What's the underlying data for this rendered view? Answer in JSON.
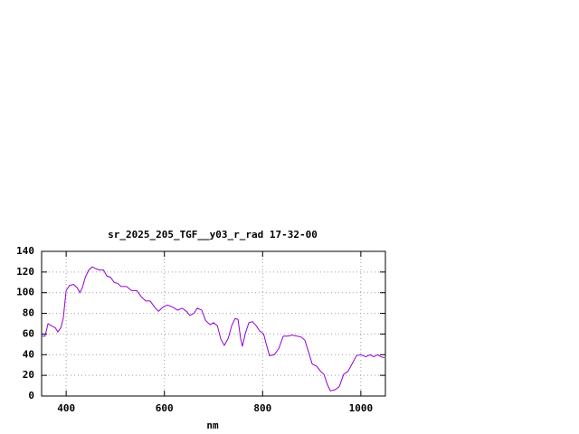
{
  "chart_data": {
    "type": "line",
    "title": "sr_2025_205_TGF__y03_r_rad 17-32-00",
    "x_label": "nm",
    "xlim": [
      350,
      1050
    ],
    "xticks": [
      400,
      600,
      800,
      1000
    ],
    "ylim": [
      0,
      140
    ],
    "yticks": [
      0,
      20,
      40,
      60,
      80,
      100,
      120,
      140
    ],
    "grid": true,
    "series": [
      {
        "color": "#9400d3",
        "x": [
          350,
          357,
          363,
          370,
          378,
          383,
          389,
          394,
          400,
          407,
          415,
          422,
          428,
          433,
          439,
          446,
          453,
          461,
          468,
          476,
          483,
          490,
          498,
          505,
          512,
          523,
          533,
          544,
          553,
          562,
          571,
          580,
          588,
          597,
          606,
          617,
          627,
          636,
          645,
          652,
          660,
          667,
          676,
          684,
          693,
          700,
          708,
          715,
          722,
          730,
          737,
          744,
          750,
          755,
          759,
          765,
          772,
          779,
          787,
          794,
          802,
          807,
          814,
          824,
          833,
          842,
          851,
          860,
          870,
          879,
          886,
          894,
          901,
          910,
          918,
          925,
          932,
          938,
          947,
          956,
          965,
          974,
          982,
          991,
          1000,
          1010,
          1019,
          1026,
          1034,
          1041,
          1048
        ],
        "values": [
          58,
          58,
          70,
          68,
          66,
          62,
          66,
          75,
          102,
          107,
          108,
          105,
          100,
          105,
          115,
          122,
          125,
          123,
          122,
          122,
          116,
          115,
          110,
          109,
          106,
          106,
          102,
          102,
          96,
          92,
          92,
          86,
          82,
          86,
          88,
          86,
          83,
          85,
          82,
          78,
          80,
          85,
          83,
          73,
          69,
          71,
          68,
          55,
          49,
          56,
          68,
          75,
          74,
          56,
          48,
          61,
          71,
          72,
          68,
          63,
          60,
          51,
          39,
          40,
          46,
          58,
          58,
          59,
          58,
          57,
          54,
          42,
          31,
          29,
          24,
          21,
          11,
          5,
          6,
          9,
          21,
          24,
          31,
          39,
          40,
          38,
          40,
          38,
          40,
          38,
          37
        ]
      }
    ]
  }
}
